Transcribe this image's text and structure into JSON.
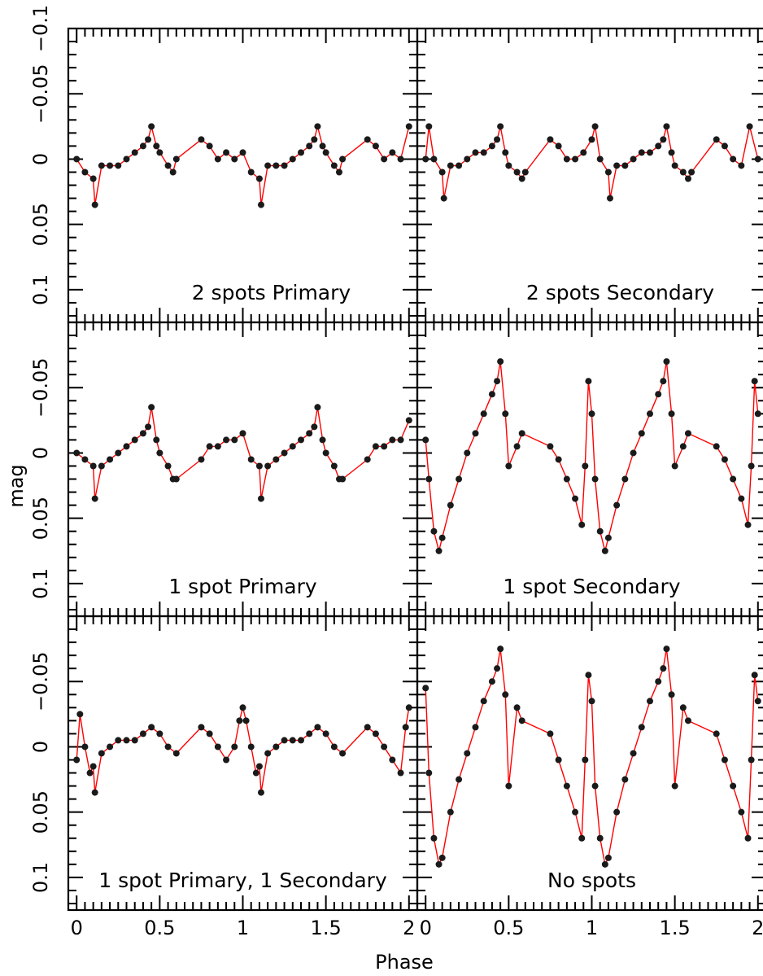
{
  "figure": {
    "xlabel": "Phase",
    "ylabel": "mag"
  },
  "colors": {
    "points": "#1a1a1a",
    "line": "#ff0000",
    "frame": "#000000",
    "background": "#ffffff"
  },
  "axes": {
    "x_ticklabels": [
      "0",
      "0.5",
      "1",
      "1.5",
      "2"
    ],
    "y_ticklabels_top": [
      "0.1",
      "0.05",
      "0",
      "−0.05",
      "−0.1"
    ],
    "y_ticklabels_other": [
      "0.1",
      "0.05",
      "0",
      "−0.05"
    ]
  },
  "chart_data": [
    {
      "panel": "2 spots Primary",
      "type": "scatter",
      "label": "2 spots Primary",
      "xlim": [
        -0.05,
        2.05
      ],
      "ylim": [
        0.125,
        -0.1
      ],
      "y_inverted": true,
      "x": [
        0.0,
        0.05,
        0.1,
        0.11,
        0.15,
        0.2,
        0.25,
        0.3,
        0.35,
        0.4,
        0.43,
        0.45,
        0.48,
        0.5,
        0.55,
        0.58,
        0.6,
        0.75,
        0.8,
        0.85,
        0.9,
        0.95,
        1.0,
        1.05,
        1.1,
        1.11,
        1.15,
        1.2,
        1.25,
        1.3,
        1.35,
        1.4,
        1.43,
        1.45,
        1.48,
        1.5,
        1.55,
        1.58,
        1.6,
        1.75,
        1.8,
        1.85,
        1.9,
        1.95,
        2.0
      ],
      "y": [
        0.0,
        0.01,
        0.015,
        0.035,
        0.005,
        0.005,
        0.005,
        0.0,
        -0.005,
        -0.01,
        -0.015,
        -0.025,
        -0.01,
        -0.005,
        0.005,
        0.01,
        0.0,
        -0.015,
        -0.01,
        0.0,
        -0.005,
        0.0,
        -0.005,
        0.01,
        0.015,
        0.035,
        0.005,
        0.005,
        0.005,
        0.0,
        -0.005,
        -0.01,
        -0.015,
        -0.025,
        -0.01,
        -0.005,
        0.005,
        0.01,
        0.0,
        -0.015,
        -0.01,
        0.0,
        -0.005,
        0.0,
        -0.025
      ]
    },
    {
      "panel": "2 spots Secondary",
      "type": "scatter",
      "label": "2 spots Secondary",
      "xlim": [
        -0.05,
        2.05
      ],
      "ylim": [
        0.125,
        -0.1
      ],
      "y_inverted": true,
      "x": [
        0.0,
        0.02,
        0.05,
        0.1,
        0.11,
        0.15,
        0.2,
        0.25,
        0.3,
        0.35,
        0.4,
        0.43,
        0.45,
        0.48,
        0.5,
        0.55,
        0.58,
        0.6,
        0.75,
        0.8,
        0.85,
        0.9,
        0.95,
        1.0,
        1.02,
        1.05,
        1.1,
        1.11,
        1.15,
        1.2,
        1.25,
        1.3,
        1.35,
        1.4,
        1.43,
        1.45,
        1.48,
        1.5,
        1.55,
        1.58,
        1.6,
        1.75,
        1.8,
        1.85,
        1.9,
        1.95,
        2.0
      ],
      "y": [
        0.0,
        -0.025,
        0.0,
        0.01,
        0.03,
        0.005,
        0.005,
        0.0,
        -0.005,
        -0.005,
        -0.01,
        -0.015,
        -0.025,
        -0.005,
        0.005,
        0.01,
        0.015,
        0.01,
        -0.015,
        -0.01,
        0.0,
        0.0,
        -0.005,
        -0.015,
        -0.025,
        0.0,
        0.01,
        0.03,
        0.005,
        0.005,
        0.0,
        -0.005,
        -0.005,
        -0.01,
        -0.015,
        -0.025,
        -0.005,
        0.005,
        0.01,
        0.015,
        0.01,
        -0.015,
        -0.01,
        0.0,
        0.005,
        -0.025,
        0.0
      ]
    },
    {
      "panel": "1 spot Primary",
      "type": "scatter",
      "label": "1 spot Primary",
      "xlim": [
        -0.05,
        2.05
      ],
      "ylim": [
        0.125,
        -0.1
      ],
      "y_inverted": true,
      "x": [
        0.0,
        0.05,
        0.1,
        0.11,
        0.15,
        0.2,
        0.25,
        0.3,
        0.35,
        0.4,
        0.43,
        0.45,
        0.48,
        0.5,
        0.55,
        0.58,
        0.6,
        0.75,
        0.8,
        0.85,
        0.9,
        0.95,
        1.0,
        1.05,
        1.1,
        1.11,
        1.15,
        1.2,
        1.25,
        1.3,
        1.35,
        1.4,
        1.43,
        1.45,
        1.48,
        1.5,
        1.55,
        1.58,
        1.6,
        1.75,
        1.8,
        1.85,
        1.9,
        1.95,
        2.0
      ],
      "y": [
        0.0,
        0.005,
        0.01,
        0.035,
        0.01,
        0.005,
        0.0,
        -0.005,
        -0.01,
        -0.015,
        -0.02,
        -0.035,
        -0.01,
        0.0,
        0.01,
        0.02,
        0.02,
        0.005,
        -0.005,
        -0.005,
        -0.01,
        -0.01,
        -0.015,
        0.005,
        0.01,
        0.035,
        0.01,
        0.005,
        0.0,
        -0.005,
        -0.01,
        -0.015,
        -0.02,
        -0.035,
        -0.01,
        0.0,
        0.01,
        0.02,
        0.02,
        0.005,
        -0.005,
        -0.005,
        -0.01,
        -0.01,
        -0.025
      ]
    },
    {
      "panel": "1 spot Secondary",
      "type": "scatter",
      "label": "1 spot Secondary",
      "xlim": [
        -0.05,
        2.05
      ],
      "ylim": [
        0.125,
        -0.1
      ],
      "y_inverted": true,
      "x": [
        0.0,
        0.02,
        0.05,
        0.08,
        0.1,
        0.15,
        0.2,
        0.25,
        0.3,
        0.35,
        0.4,
        0.43,
        0.45,
        0.48,
        0.5,
        0.55,
        0.58,
        0.75,
        0.8,
        0.85,
        0.9,
        0.94,
        0.96,
        0.98,
        1.0,
        1.02,
        1.05,
        1.08,
        1.1,
        1.15,
        1.2,
        1.25,
        1.3,
        1.35,
        1.4,
        1.43,
        1.45,
        1.48,
        1.5,
        1.55,
        1.58,
        1.75,
        1.8,
        1.85,
        1.9,
        1.94,
        1.96,
        1.98,
        2.0
      ],
      "y": [
        -0.01,
        0.02,
        0.06,
        0.075,
        0.065,
        0.04,
        0.02,
        0.0,
        -0.015,
        -0.03,
        -0.045,
        -0.055,
        -0.07,
        -0.03,
        0.01,
        -0.005,
        -0.015,
        -0.005,
        0.005,
        0.02,
        0.035,
        0.055,
        0.01,
        -0.055,
        -0.03,
        0.02,
        0.06,
        0.075,
        0.065,
        0.04,
        0.02,
        0.0,
        -0.015,
        -0.03,
        -0.045,
        -0.055,
        -0.07,
        -0.03,
        0.01,
        -0.005,
        -0.015,
        -0.005,
        0.005,
        0.02,
        0.035,
        0.055,
        0.01,
        -0.055,
        -0.03
      ]
    },
    {
      "panel": "1 spot Primary, 1 Secondary",
      "type": "scatter",
      "label": "1 spot Primary, 1 Secondary",
      "xlim": [
        -0.05,
        2.05
      ],
      "ylim": [
        0.125,
        -0.1
      ],
      "y_inverted": true,
      "x": [
        0.0,
        0.02,
        0.05,
        0.08,
        0.1,
        0.11,
        0.15,
        0.2,
        0.25,
        0.3,
        0.35,
        0.4,
        0.45,
        0.5,
        0.55,
        0.6,
        0.75,
        0.8,
        0.85,
        0.9,
        0.95,
        0.98,
        1.0,
        1.02,
        1.05,
        1.08,
        1.1,
        1.11,
        1.15,
        1.2,
        1.25,
        1.3,
        1.35,
        1.4,
        1.45,
        1.5,
        1.55,
        1.6,
        1.75,
        1.8,
        1.85,
        1.9,
        1.95,
        1.98,
        2.0
      ],
      "y": [
        0.01,
        -0.025,
        0.0,
        0.02,
        0.015,
        0.035,
        0.005,
        0.0,
        -0.005,
        -0.005,
        -0.005,
        -0.01,
        -0.015,
        -0.01,
        0.0,
        0.005,
        -0.015,
        -0.01,
        0.0,
        0.01,
        0.0,
        -0.02,
        -0.03,
        -0.02,
        0.0,
        0.02,
        0.015,
        0.035,
        0.005,
        0.0,
        -0.005,
        -0.005,
        -0.005,
        -0.01,
        -0.015,
        -0.01,
        0.0,
        0.005,
        -0.015,
        -0.01,
        0.0,
        0.01,
        0.02,
        -0.015,
        -0.03
      ]
    },
    {
      "panel": "No spots",
      "type": "scatter",
      "label": "No spots",
      "xlim": [
        -0.05,
        2.05
      ],
      "ylim": [
        0.125,
        -0.1
      ],
      "y_inverted": true,
      "x": [
        0.0,
        0.02,
        0.05,
        0.08,
        0.1,
        0.15,
        0.2,
        0.25,
        0.3,
        0.35,
        0.4,
        0.43,
        0.45,
        0.48,
        0.5,
        0.55,
        0.58,
        0.75,
        0.8,
        0.85,
        0.9,
        0.94,
        0.96,
        0.98,
        1.0,
        1.02,
        1.05,
        1.08,
        1.1,
        1.15,
        1.2,
        1.25,
        1.3,
        1.35,
        1.4,
        1.43,
        1.45,
        1.48,
        1.5,
        1.55,
        1.58,
        1.75,
        1.8,
        1.85,
        1.9,
        1.94,
        1.96,
        1.98,
        2.0
      ],
      "y": [
        -0.045,
        0.02,
        0.07,
        0.09,
        0.085,
        0.05,
        0.025,
        0.005,
        -0.015,
        -0.035,
        -0.05,
        -0.06,
        -0.075,
        -0.04,
        0.03,
        -0.03,
        -0.02,
        -0.01,
        0.01,
        0.03,
        0.05,
        0.07,
        0.01,
        -0.055,
        -0.035,
        0.03,
        0.07,
        0.09,
        0.085,
        0.05,
        0.025,
        0.005,
        -0.015,
        -0.035,
        -0.05,
        -0.06,
        -0.075,
        -0.04,
        0.03,
        -0.03,
        -0.02,
        -0.01,
        0.01,
        0.03,
        0.05,
        0.07,
        0.01,
        -0.055,
        -0.035
      ]
    }
  ]
}
